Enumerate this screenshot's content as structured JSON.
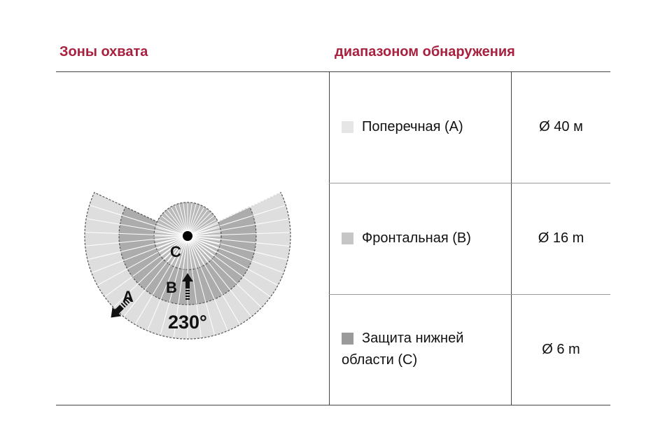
{
  "header": {
    "left": "Зоны охвата",
    "right": "диапазоном обнаружения"
  },
  "diagram": {
    "angle_label": "230°",
    "labels": {
      "a": "A",
      "b": "B",
      "c": "C"
    },
    "coverage_degrees": 230
  },
  "rows": [
    {
      "name": "Поперечная (A)",
      "value": "Ø 40 м",
      "swatch": "#e6e6e6"
    },
    {
      "name": "Фронтальная (B)",
      "value": "Ø 16 m",
      "swatch": "#c6c6c6"
    },
    {
      "name_line1": "Защита нижней",
      "name_line2": "области (C)",
      "value": "Ø 6 m",
      "swatch": "#9a9a9a"
    }
  ],
  "colors": {
    "accent": "#a8213f",
    "zone_a": "#dedede",
    "zone_b": "#acacac",
    "zone_c": "#bababa"
  }
}
